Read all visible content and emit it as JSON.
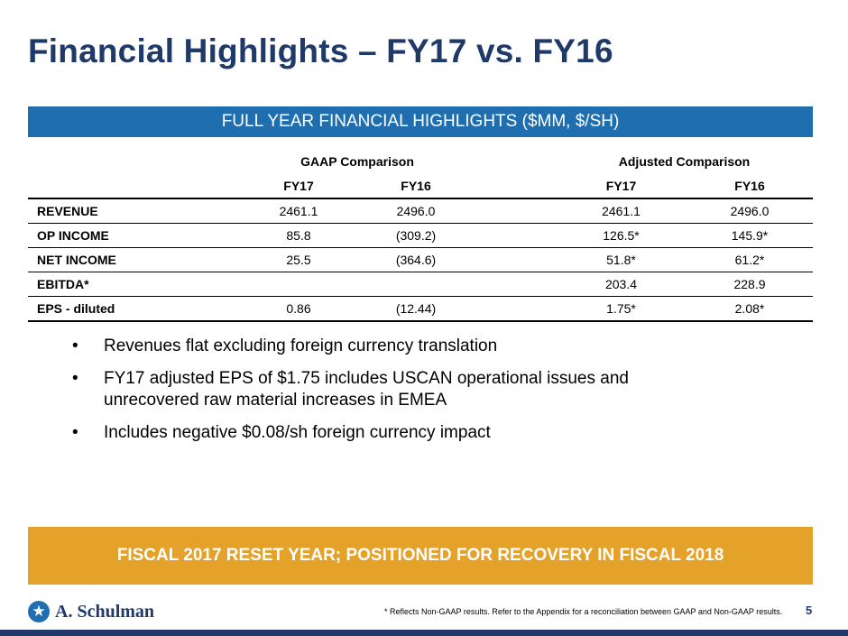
{
  "title": "Financial Highlights –  FY17 vs. FY16",
  "banner": "FULL YEAR FINANCIAL HIGHLIGHTS ($MM, $/SH)",
  "table": {
    "groups": {
      "gaap": "GAAP Comparison",
      "adjusted": "Adjusted Comparison"
    },
    "periods": [
      "FY17",
      "FY16",
      "FY17",
      "FY16"
    ],
    "rows": [
      {
        "label": "REVENUE",
        "gaap_fy17": "2461.1",
        "gaap_fy16": "2496.0",
        "adj_fy17": "2461.1",
        "adj_fy16": "2496.0"
      },
      {
        "label": "OP INCOME",
        "gaap_fy17": "85.8",
        "gaap_fy16": "(309.2)",
        "adj_fy17": "126.5*",
        "adj_fy16": "145.9*"
      },
      {
        "label": "NET INCOME",
        "gaap_fy17": "25.5",
        "gaap_fy16": "(364.6)",
        "adj_fy17": "51.8*",
        "adj_fy16": "61.2*"
      },
      {
        "label": "EBITDA*",
        "gaap_fy17": "",
        "gaap_fy16": "",
        "adj_fy17": "203.4",
        "adj_fy16": "228.9"
      },
      {
        "label": "EPS - diluted",
        "gaap_fy17": "0.86",
        "gaap_fy16": "(12.44)",
        "adj_fy17": "1.75*",
        "adj_fy16": "2.08*"
      }
    ]
  },
  "bullets": [
    "Revenues flat excluding foreign currency translation",
    "FY17 adjusted EPS of $1.75 includes USCAN operational issues and unrecovered raw material increases in EMEA",
    "Includes negative $0.08/sh foreign currency impact"
  ],
  "callout": "FISCAL 2017 RESET YEAR; POSITIONED FOR RECOVERY IN FISCAL 2018",
  "logo": {
    "text": "A. Schulman",
    "icon": "star-figure-icon"
  },
  "footnote": "* Reflects Non-GAAP results. Refer to the Appendix for a reconciliation between GAAP and Non-GAAP results.",
  "page_number": "5",
  "colors": {
    "title": "#1f3a68",
    "banner": "#1f6fb0",
    "callout": "#e4a22a",
    "bottom_bar": "#1f3a68"
  }
}
